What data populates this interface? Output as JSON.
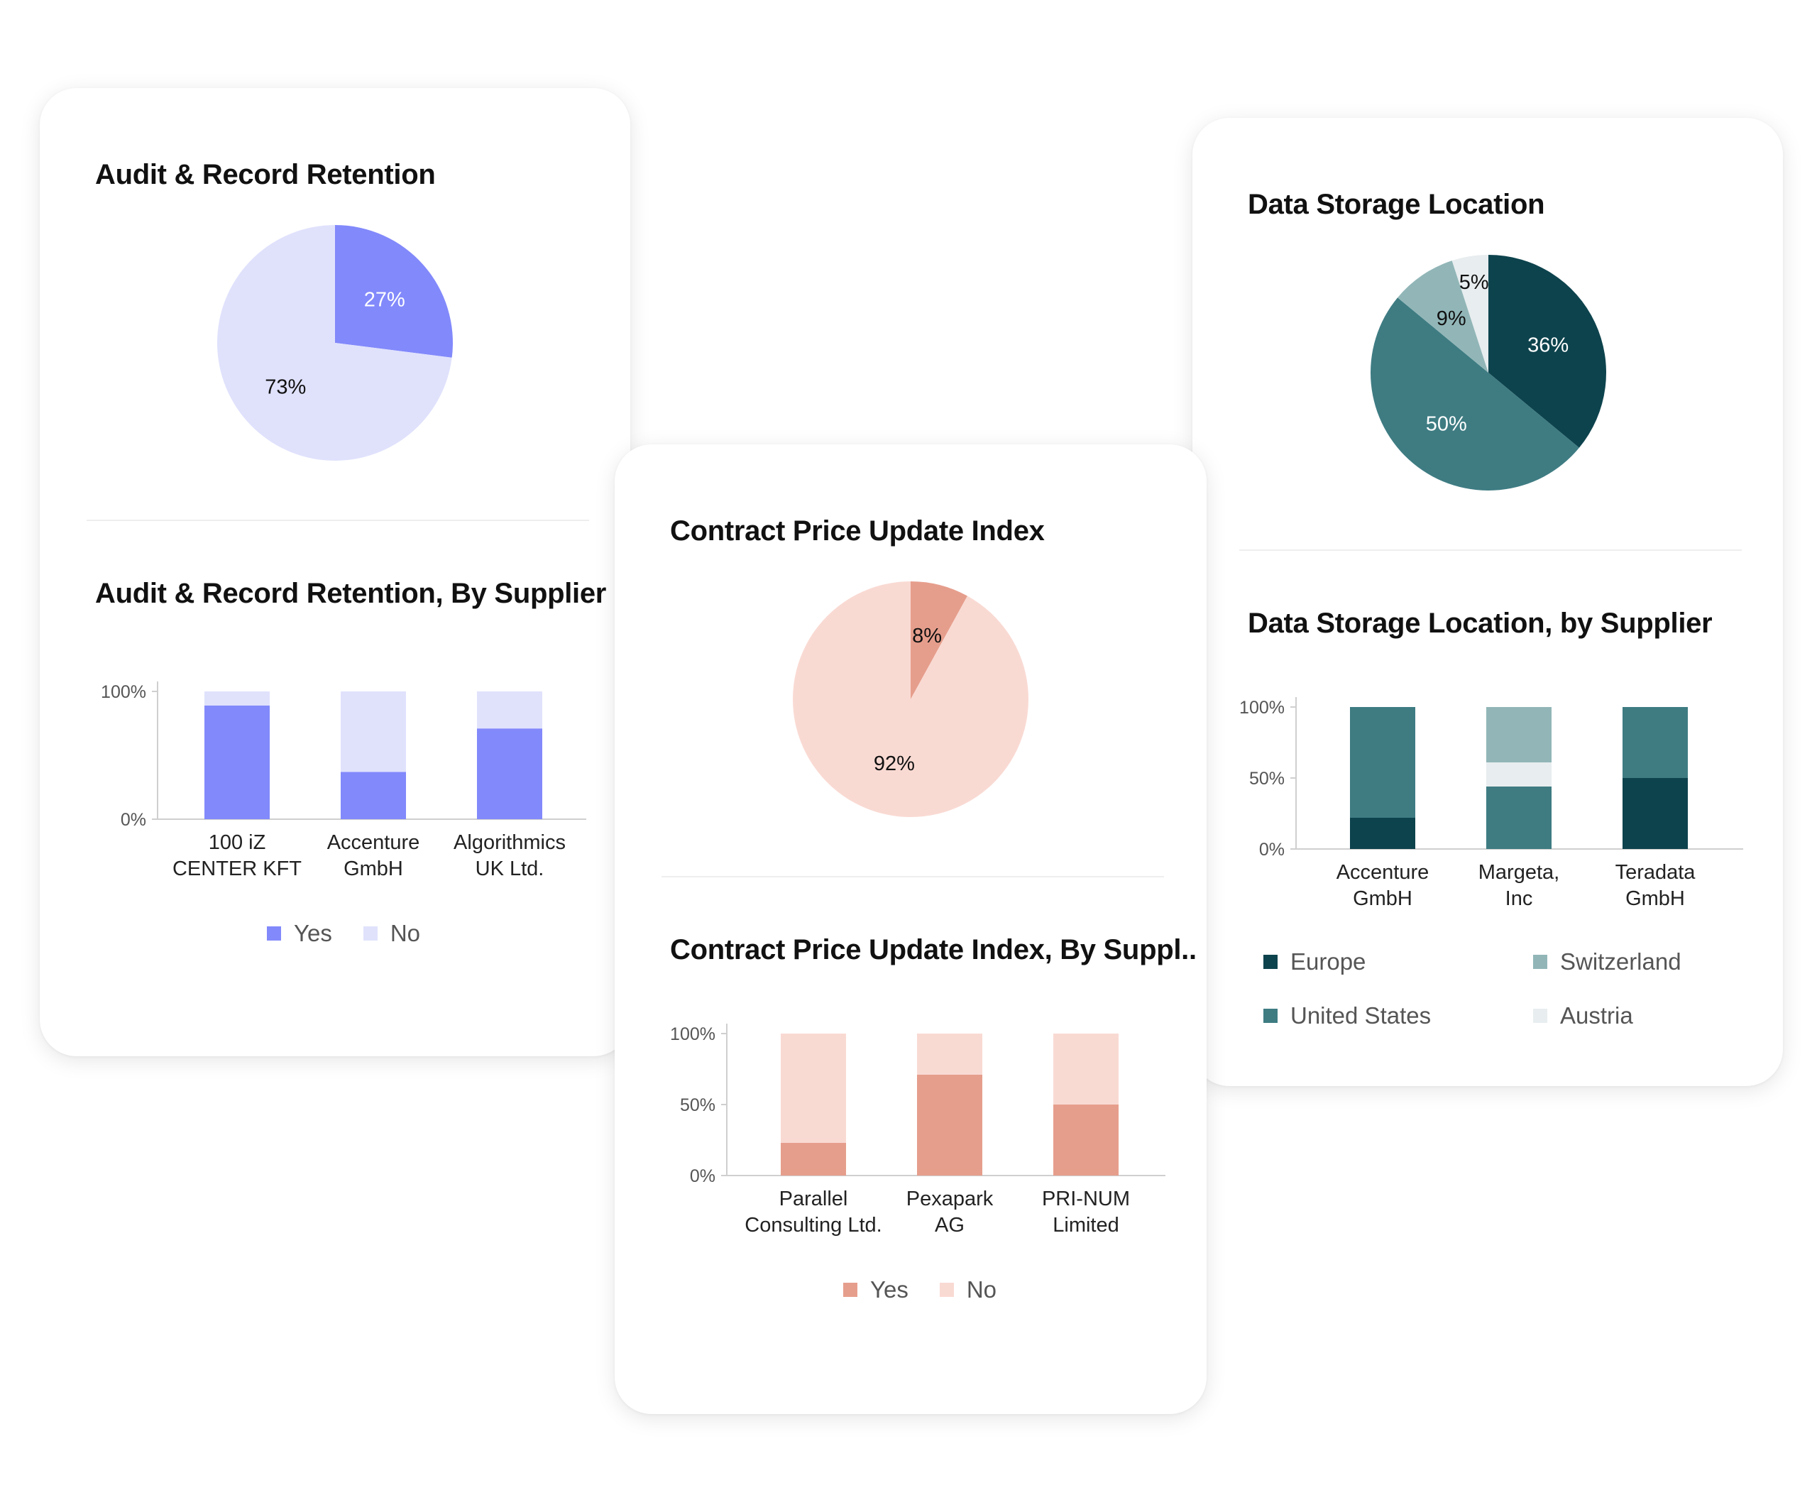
{
  "cards": {
    "audit": {
      "pie_title": "Audit & Record Retention",
      "bar_title": "Audit & Record Retention, By Supplier",
      "legend": [
        {
          "label": "Yes",
          "color": "#8289fb"
        },
        {
          "label": "No",
          "color": "#e0e2fc"
        }
      ]
    },
    "contract": {
      "pie_title": "Contract Price Update Index",
      "bar_title": "Contract Price Update Index, By Suppl..",
      "legend": [
        {
          "label": "Yes",
          "color": "#e69e8c"
        },
        {
          "label": "No",
          "color": "#f9dad3"
        }
      ]
    },
    "storage": {
      "pie_title": "Data Storage Location",
      "bar_title": "Data Storage Location, by Supplier",
      "legend": [
        {
          "label": "Europe",
          "color": "#0d434d"
        },
        {
          "label": "Switzerland",
          "color": "#92b6b8"
        },
        {
          "label": "United States",
          "color": "#3e7c82"
        },
        {
          "label": "Austria",
          "color": "#e8edef"
        }
      ]
    }
  },
  "chart_data": [
    {
      "id": "audit-pie",
      "type": "pie",
      "title": "Audit & Record Retention",
      "slices": [
        {
          "name": "Yes",
          "value": 27,
          "label": "27%",
          "color": "#8289fb",
          "label_color": "#ffffff"
        },
        {
          "name": "No",
          "value": 73,
          "label": "73%",
          "color": "#e0e2fc",
          "label_color": "#111111"
        }
      ]
    },
    {
      "id": "audit-bar",
      "type": "bar",
      "stacked": true,
      "title": "Audit & Record Retention, By Supplier",
      "categories": [
        [
          "100 iZ",
          "CENTER KFT"
        ],
        [
          "Accenture",
          "GmbH"
        ],
        [
          "Algorithmics",
          "UK Ltd."
        ]
      ],
      "yticks": [
        {
          "value": 0,
          "label": "0%"
        },
        {
          "value": 100,
          "label": "100%"
        }
      ],
      "ylim": [
        0,
        100
      ],
      "series": [
        {
          "name": "Yes",
          "color": "#8289fb",
          "values": [
            89,
            37,
            71
          ]
        },
        {
          "name": "No",
          "color": "#e0e2fc",
          "values": [
            11,
            63,
            29
          ]
        }
      ]
    },
    {
      "id": "contract-pie",
      "type": "pie",
      "title": "Contract Price Update Index",
      "slices": [
        {
          "name": "Yes",
          "value": 8,
          "label": "8%",
          "color": "#e69e8c",
          "label_color": "#111111"
        },
        {
          "name": "No",
          "value": 92,
          "label": "92%",
          "color": "#f9dad3",
          "label_color": "#111111"
        }
      ]
    },
    {
      "id": "contract-bar",
      "type": "bar",
      "stacked": true,
      "title": "Contract Price Update Index, By Suppl..",
      "categories": [
        [
          "Parallel",
          "Consulting Ltd."
        ],
        [
          "Pexapark",
          "AG"
        ],
        [
          "PRI-NUM",
          "Limited"
        ]
      ],
      "yticks": [
        {
          "value": 0,
          "label": "0%"
        },
        {
          "value": 50,
          "label": "50%"
        },
        {
          "value": 100,
          "label": "100%"
        }
      ],
      "ylim": [
        0,
        100
      ],
      "series": [
        {
          "name": "Yes",
          "color": "#e69e8c",
          "values": [
            23,
            71,
            50
          ]
        },
        {
          "name": "No",
          "color": "#f9dad3",
          "values": [
            77,
            29,
            50
          ]
        }
      ]
    },
    {
      "id": "storage-pie",
      "type": "pie",
      "title": "Data Storage Location",
      "slices": [
        {
          "name": "Europe",
          "value": 36,
          "label": "36%",
          "color": "#0d434d",
          "label_color": "#ffffff"
        },
        {
          "name": "United States",
          "value": 50,
          "label": "50%",
          "color": "#3e7c82",
          "label_color": "#ffffff"
        },
        {
          "name": "Switzerland",
          "value": 9,
          "label": "9%",
          "color": "#92b6b8",
          "label_color": "#111111"
        },
        {
          "name": "Austria",
          "value": 5,
          "label": "5%",
          "color": "#e8edef",
          "label_color": "#111111"
        }
      ]
    },
    {
      "id": "storage-bar",
      "type": "bar",
      "stacked": true,
      "title": "Data Storage Location, by Supplier",
      "categories": [
        [
          "Accenture",
          "GmbH"
        ],
        [
          "Margeta,",
          "Inc"
        ],
        [
          "Teradata",
          "GmbH"
        ]
      ],
      "yticks": [
        {
          "value": 0,
          "label": "0%"
        },
        {
          "value": 50,
          "label": "50%"
        },
        {
          "value": 100,
          "label": "100%"
        }
      ],
      "ylim": [
        0,
        100
      ],
      "series": [
        {
          "name": "Europe",
          "color": "#0d434d",
          "values": [
            22,
            0,
            50
          ]
        },
        {
          "name": "United States",
          "color": "#3e7c82",
          "values": [
            78,
            44,
            50
          ]
        },
        {
          "name": "Austria",
          "color": "#e8edef",
          "values": [
            0,
            17,
            0
          ]
        },
        {
          "name": "Switzerland",
          "color": "#92b6b8",
          "values": [
            0,
            39,
            0
          ]
        }
      ]
    }
  ]
}
